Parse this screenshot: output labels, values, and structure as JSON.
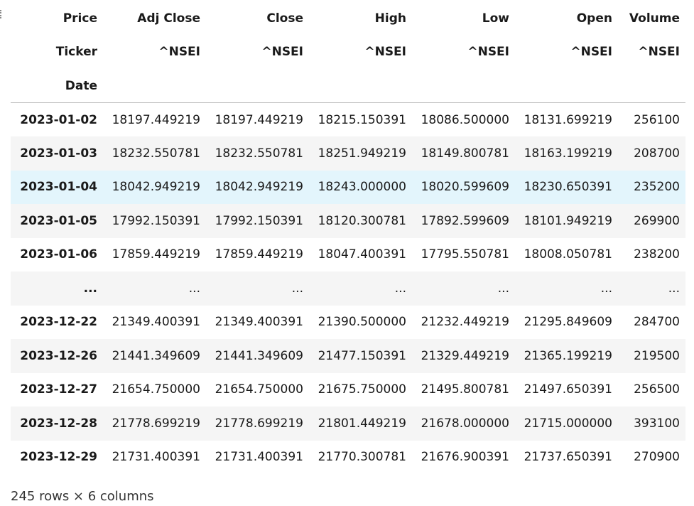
{
  "table": {
    "header_rows": [
      {
        "label": "Price",
        "cells": [
          "Adj Close",
          "Close",
          "High",
          "Low",
          "Open",
          "Volume"
        ]
      },
      {
        "label": "Ticker",
        "cells": [
          "^NSEI",
          "^NSEI",
          "^NSEI",
          "^NSEI",
          "^NSEI",
          "^NSEI"
        ]
      },
      {
        "label": "Date",
        "cells": [
          "",
          "",
          "",
          "",
          "",
          ""
        ]
      }
    ],
    "rows": [
      {
        "index": "2023-01-02",
        "cells": [
          "18197.449219",
          "18197.449219",
          "18215.150391",
          "18086.500000",
          "18131.699219",
          "256100"
        ]
      },
      {
        "index": "2023-01-03",
        "cells": [
          "18232.550781",
          "18232.550781",
          "18251.949219",
          "18149.800781",
          "18163.199219",
          "208700"
        ]
      },
      {
        "index": "2023-01-04",
        "cells": [
          "18042.949219",
          "18042.949219",
          "18243.000000",
          "18020.599609",
          "18230.650391",
          "235200"
        ]
      },
      {
        "index": "2023-01-05",
        "cells": [
          "17992.150391",
          "17992.150391",
          "18120.300781",
          "17892.599609",
          "18101.949219",
          "269900"
        ]
      },
      {
        "index": "2023-01-06",
        "cells": [
          "17859.449219",
          "17859.449219",
          "18047.400391",
          "17795.550781",
          "18008.050781",
          "238200"
        ]
      },
      {
        "index": "...",
        "cells": [
          "...",
          "...",
          "...",
          "...",
          "...",
          "..."
        ]
      },
      {
        "index": "2023-12-22",
        "cells": [
          "21349.400391",
          "21349.400391",
          "21390.500000",
          "21232.449219",
          "21295.849609",
          "284700"
        ]
      },
      {
        "index": "2023-12-26",
        "cells": [
          "21441.349609",
          "21441.349609",
          "21477.150391",
          "21329.449219",
          "21365.199219",
          "219500"
        ]
      },
      {
        "index": "2023-12-27",
        "cells": [
          "21654.750000",
          "21654.750000",
          "21675.750000",
          "21495.800781",
          "21497.650391",
          "256500"
        ]
      },
      {
        "index": "2023-12-28",
        "cells": [
          "21778.699219",
          "21778.699219",
          "21801.449219",
          "21678.000000",
          "21715.000000",
          "393100"
        ]
      },
      {
        "index": "2023-12-29",
        "cells": [
          "21731.400391",
          "21731.400391",
          "21770.300781",
          "21676.900391",
          "21737.650391",
          "270900"
        ]
      }
    ]
  },
  "footer": "245 rows × 6 columns"
}
